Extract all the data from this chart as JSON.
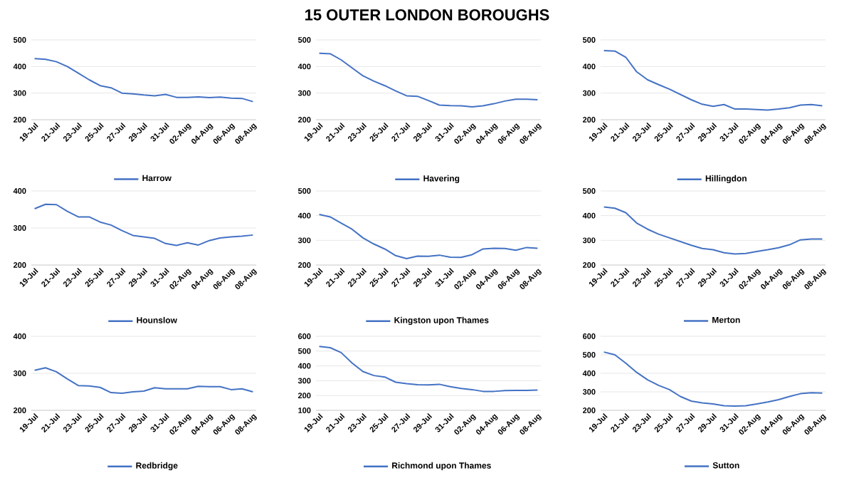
{
  "chart_data": [
    {
      "type": "other",
      "title": "15 OUTER LONDON BOROUGHS"
    },
    {
      "type": "line",
      "categories": [
        "19-Jul",
        null,
        "21-Jul",
        null,
        "23-Jul",
        null,
        "25-Jul",
        null,
        "27-Jul",
        null,
        "29-Jul",
        null,
        "31-Jul",
        null,
        "02-Aug",
        null,
        "04-Aug",
        null,
        "06-Aug",
        null,
        "08-Aug"
      ],
      "ylim": [
        200,
        500
      ],
      "yticks": [
        200,
        300,
        400,
        500
      ],
      "grid": "y",
      "legend": "bottom",
      "series": [
        {
          "name": "Harrow",
          "color": "#4472c4",
          "values": [
            430,
            427,
            418,
            400,
            375,
            350,
            328,
            320,
            300,
            297,
            293,
            290,
            295,
            284,
            284,
            286,
            283,
            285,
            281,
            280,
            268
          ]
        }
      ]
    },
    {
      "type": "line",
      "categories": [
        "19-Jul",
        null,
        "21-Jul",
        null,
        "23-Jul",
        null,
        "25-Jul",
        null,
        "27-Jul",
        null,
        "29-Jul",
        null,
        "31-Jul",
        null,
        "02-Aug",
        null,
        "04-Aug",
        null,
        "06-Aug",
        null,
        "08-Aug"
      ],
      "ylim": [
        200,
        500
      ],
      "yticks": [
        200,
        300,
        400,
        500
      ],
      "grid": "y",
      "legend": "bottom",
      "series": [
        {
          "name": "Havering",
          "color": "#4472c4",
          "values": [
            450,
            448,
            425,
            395,
            365,
            345,
            328,
            308,
            290,
            288,
            272,
            255,
            253,
            252,
            248,
            252,
            260,
            270,
            277,
            277,
            275
          ]
        }
      ]
    },
    {
      "type": "line",
      "categories": [
        "19-Jul",
        null,
        "21-Jul",
        null,
        "23-Jul",
        null,
        "25-Jul",
        null,
        "27-Jul",
        null,
        "29-Jul",
        null,
        "31-Jul",
        null,
        "02-Aug",
        null,
        "04-Aug",
        null,
        "06-Aug",
        null,
        "08-Aug"
      ],
      "ylim": [
        200,
        500
      ],
      "yticks": [
        200,
        300,
        400,
        500
      ],
      "grid": "y",
      "legend": "bottom",
      "series": [
        {
          "name": "Hillingdon",
          "color": "#4472c4",
          "values": [
            460,
            458,
            435,
            380,
            350,
            332,
            315,
            295,
            275,
            258,
            250,
            257,
            240,
            240,
            238,
            236,
            240,
            245,
            255,
            257,
            252
          ]
        }
      ]
    },
    {
      "type": "line",
      "categories": [
        "19-Jul",
        null,
        "21-Jul",
        null,
        "23-Jul",
        null,
        "25-Jul",
        null,
        "27-Jul",
        null,
        "29-Jul",
        null,
        "31-Jul",
        null,
        "02-Aug",
        null,
        "04-Aug",
        null,
        "06-Aug",
        null,
        "08-Aug"
      ],
      "ylim": [
        200,
        400
      ],
      "yticks": [
        200,
        300,
        400
      ],
      "grid": "y",
      "legend": "bottom",
      "series": [
        {
          "name": "Hounslow",
          "color": "#4472c4",
          "values": [
            352,
            364,
            363,
            345,
            330,
            330,
            316,
            308,
            293,
            280,
            276,
            272,
            258,
            253,
            260,
            254,
            266,
            273,
            276,
            278,
            281
          ]
        }
      ]
    },
    {
      "type": "line",
      "categories": [
        "19-Jul",
        null,
        "21-Jul",
        null,
        "23-Jul",
        null,
        "25-Jul",
        null,
        "27-Jul",
        null,
        "29-Jul",
        null,
        "31-Jul",
        null,
        "02-Aug",
        null,
        "04-Aug",
        null,
        "06-Aug",
        null,
        "08-Aug"
      ],
      "ylim": [
        200,
        500
      ],
      "yticks": [
        200,
        300,
        400,
        500
      ],
      "grid": "y",
      "legend": "bottom",
      "series": [
        {
          "name": "Kingston upon Thames",
          "color": "#4472c4",
          "values": [
            405,
            395,
            370,
            345,
            310,
            285,
            265,
            238,
            226,
            236,
            235,
            240,
            232,
            231,
            242,
            265,
            268,
            267,
            260,
            271,
            268
          ]
        }
      ]
    },
    {
      "type": "line",
      "categories": [
        "19-Jul",
        null,
        "21-Jul",
        null,
        "23-Jul",
        null,
        "25-Jul",
        null,
        "27-Jul",
        null,
        "29-Jul",
        null,
        "31-Jul",
        null,
        "02-Aug",
        null,
        "04-Aug",
        null,
        "06-Aug",
        null,
        "08-Aug"
      ],
      "ylim": [
        200,
        500
      ],
      "yticks": [
        200,
        300,
        400,
        500
      ],
      "grid": "y",
      "legend": "bottom",
      "series": [
        {
          "name": "Merton",
          "color": "#4472c4",
          "values": [
            435,
            430,
            412,
            370,
            345,
            325,
            310,
            295,
            280,
            267,
            262,
            250,
            245,
            247,
            255,
            262,
            270,
            282,
            302,
            305,
            305
          ]
        }
      ]
    },
    {
      "type": "line",
      "categories": [
        "19-Jul",
        null,
        "21-Jul",
        null,
        "23-Jul",
        null,
        "25-Jul",
        null,
        "27-Jul",
        null,
        "29-Jul",
        null,
        "31-Jul",
        null,
        "02-Aug",
        null,
        "04-Aug",
        null,
        "06-Aug",
        null,
        "08-Aug"
      ],
      "ylim": [
        200,
        400
      ],
      "yticks": [
        200,
        300,
        400
      ],
      "grid": "y",
      "legend": "bottom",
      "series": [
        {
          "name": "Redbridge",
          "color": "#4472c4",
          "values": [
            308,
            315,
            304,
            285,
            267,
            266,
            262,
            248,
            246,
            250,
            252,
            261,
            258,
            258,
            258,
            265,
            264,
            264,
            256,
            258,
            250
          ]
        }
      ]
    },
    {
      "type": "line",
      "categories": [
        "19-Jul",
        null,
        "21-Jul",
        null,
        "23-Jul",
        null,
        "25-Jul",
        null,
        "27-Jul",
        null,
        "29-Jul",
        null,
        "31-Jul",
        null,
        "02-Aug",
        null,
        "04-Aug",
        null,
        "06-Aug",
        null,
        "08-Aug"
      ],
      "ylim": [
        100,
        600
      ],
      "yticks": [
        100,
        200,
        300,
        400,
        500,
        600
      ],
      "grid": "y",
      "legend": "bottom",
      "series": [
        {
          "name": "Richmond upon Thames",
          "color": "#4472c4",
          "values": [
            532,
            523,
            490,
            420,
            362,
            335,
            325,
            290,
            280,
            273,
            272,
            276,
            260,
            248,
            240,
            228,
            228,
            233,
            235,
            235,
            237
          ]
        }
      ]
    },
    {
      "type": "line",
      "categories": [
        "19-Jul",
        null,
        "21-Jul",
        null,
        "23-Jul",
        null,
        "25-Jul",
        null,
        "27-Jul",
        null,
        "29-Jul",
        null,
        "31-Jul",
        null,
        "02-Aug",
        null,
        "04-Aug",
        null,
        "06-Aug",
        null,
        "08-Aug"
      ],
      "ylim": [
        200,
        600
      ],
      "yticks": [
        200,
        300,
        400,
        500,
        600
      ],
      "grid": "y",
      "legend": "bottom",
      "series": [
        {
          "name": "Sutton",
          "color": "#4472c4",
          "values": [
            515,
            500,
            455,
            405,
            365,
            335,
            312,
            275,
            250,
            240,
            235,
            225,
            223,
            225,
            235,
            245,
            258,
            275,
            290,
            295,
            293
          ]
        }
      ]
    }
  ]
}
